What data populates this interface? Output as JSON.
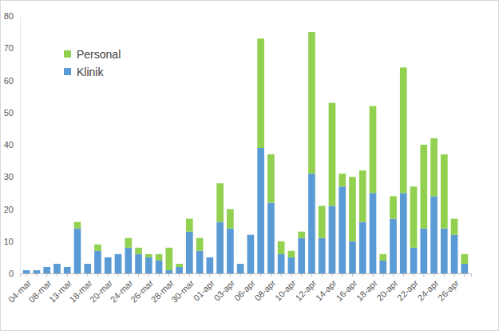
{
  "chart_data": {
    "type": "bar",
    "stacked": true,
    "legend": "top-left",
    "grid": false,
    "categories": [
      "04-mar",
      null,
      "08-mar",
      null,
      "13-mar",
      null,
      "18-mar",
      null,
      "20-mar",
      null,
      "24-mar",
      null,
      "26-mar",
      null,
      "28-mar",
      null,
      "30-mar",
      null,
      "01-apr",
      null,
      "03-apr",
      null,
      "06-apr",
      null,
      "08-apr",
      null,
      "10-apr",
      null,
      "12-apr",
      null,
      "14-apr",
      null,
      "16-apr",
      null,
      "18-apr",
      null,
      "20-apr",
      null,
      "22-apr",
      null,
      "24-apr",
      null,
      "26-apr",
      null
    ],
    "series": [
      {
        "name": "Klinik",
        "color": "#5b9bd5",
        "values": [
          1,
          1,
          2,
          3,
          2,
          14,
          3,
          7,
          5,
          6,
          8,
          6,
          5,
          4,
          1,
          2,
          13,
          7,
          5,
          16,
          14,
          3,
          12,
          39,
          22,
          6,
          5,
          11,
          31,
          11,
          21,
          27,
          10,
          16,
          25,
          4,
          17,
          25,
          8,
          14,
          24,
          14,
          12,
          3
        ]
      },
      {
        "name": "Personal",
        "color": "#92d050",
        "values": [
          0,
          0,
          0,
          0,
          0,
          2,
          0,
          2,
          0,
          0,
          3,
          2,
          1,
          2,
          7,
          1,
          4,
          4,
          0,
          12,
          6,
          0,
          0,
          34,
          15,
          4,
          2,
          2,
          44,
          10,
          32,
          4,
          20,
          16,
          27,
          2,
          7,
          39,
          19,
          26,
          18,
          23,
          5,
          3
        ]
      }
    ],
    "ylim": [
      0,
      80
    ],
    "yticks": [
      0,
      10,
      20,
      30,
      40,
      50,
      60,
      70,
      80
    ]
  }
}
